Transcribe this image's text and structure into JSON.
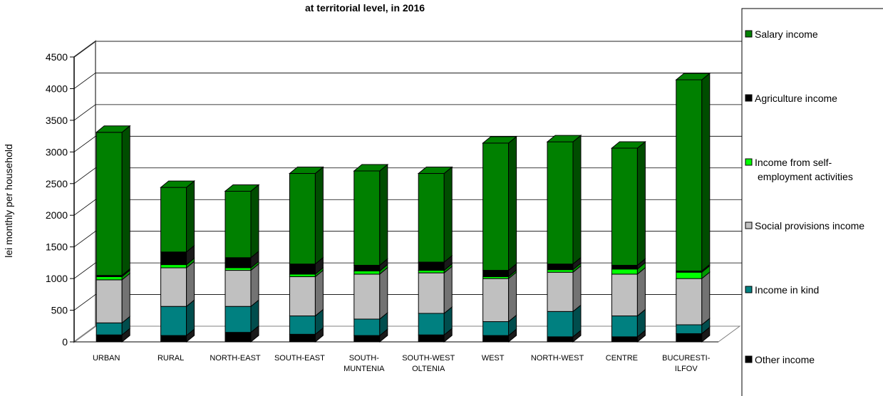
{
  "chart_data": {
    "type": "bar",
    "stacked": true,
    "three_d": true,
    "title": "at territorial level, in 2016",
    "ylabel": "lei monthly per household",
    "xlabel": "",
    "ylim": [
      0,
      4500
    ],
    "yticks": [
      0,
      500,
      1000,
      1500,
      2000,
      2500,
      3000,
      3500,
      4000,
      4500
    ],
    "grid": true,
    "legend_position": "right",
    "categories": [
      [
        "URBAN"
      ],
      [
        "RURAL"
      ],
      [
        "NORTH-EAST"
      ],
      [
        "SOUTH-EAST"
      ],
      [
        "SOUTH-",
        "MUNTENIA"
      ],
      [
        "SOUTH-WEST",
        "OLTENIA"
      ],
      [
        "WEST"
      ],
      [
        "NORTH-WEST"
      ],
      [
        "CENTRE"
      ],
      [
        "BUCURESTI-",
        "ILFOV"
      ]
    ],
    "series": [
      {
        "name": "Other income",
        "color": "#000000",
        "values": [
          110,
          100,
          150,
          120,
          100,
          110,
          100,
          80,
          80,
          130
        ]
      },
      {
        "name": "Income in kind",
        "color": "#008080",
        "values": [
          190,
          460,
          410,
          290,
          260,
          340,
          220,
          400,
          330,
          140
        ]
      },
      {
        "name": "Social provisions income",
        "color": "#C0C0C0",
        "values": [
          680,
          610,
          570,
          620,
          710,
          640,
          680,
          620,
          660,
          730
        ]
      },
      {
        "name": "Income from self-employment activities",
        "color": "#00FF00",
        "values": [
          50,
          50,
          40,
          40,
          50,
          40,
          30,
          40,
          80,
          100
        ]
      },
      {
        "name": "Agriculture income",
        "color": "#000000",
        "values": [
          20,
          200,
          160,
          160,
          90,
          130,
          100,
          90,
          60,
          20
        ]
      },
      {
        "name": "Salary income",
        "color": "#008000",
        "values": [
          2260,
          1020,
          1050,
          1430,
          1490,
          1400,
          2010,
          1930,
          1850,
          3020
        ]
      }
    ]
  },
  "legend": {
    "items": [
      {
        "label": [
          "Salary income"
        ],
        "color": "#008000"
      },
      {
        "label": [
          "Agriculture income"
        ],
        "color": "#000000"
      },
      {
        "label": [
          "Income from self-",
          "employment activities"
        ],
        "color": "#00FF00"
      },
      {
        "label": [
          "Social provisions income"
        ],
        "color": "#C0C0C0"
      },
      {
        "label": [
          "Income in kind"
        ],
        "color": "#008080"
      },
      {
        "label": [
          "Other income"
        ],
        "color": "#000000"
      }
    ]
  }
}
